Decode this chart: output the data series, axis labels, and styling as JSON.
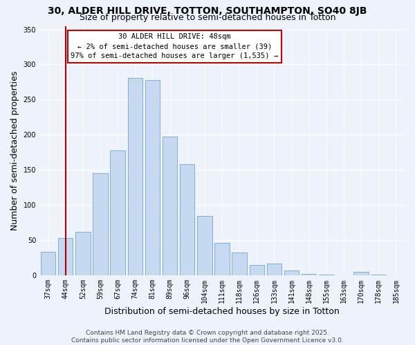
{
  "title": "30, ALDER HILL DRIVE, TOTTON, SOUTHAMPTON, SO40 8JB",
  "subtitle": "Size of property relative to semi-detached houses in Totton",
  "xlabel": "Distribution of semi-detached houses by size in Totton",
  "ylabel": "Number of semi-detached properties",
  "bar_labels": [
    "37sqm",
    "44sqm",
    "52sqm",
    "59sqm",
    "67sqm",
    "74sqm",
    "81sqm",
    "89sqm",
    "96sqm",
    "104sqm",
    "111sqm",
    "118sqm",
    "126sqm",
    "133sqm",
    "141sqm",
    "148sqm",
    "155sqm",
    "163sqm",
    "170sqm",
    "178sqm",
    "185sqm"
  ],
  "bar_values": [
    33,
    53,
    62,
    145,
    178,
    281,
    278,
    197,
    158,
    84,
    46,
    32,
    15,
    17,
    7,
    2,
    1,
    0,
    5,
    1,
    0
  ],
  "bar_color": "#c6d9f1",
  "bar_edge_color": "#7ab0df",
  "vline_x_index": 1,
  "vline_color": "#aa0000",
  "annotation_box_text": "30 ALDER HILL DRIVE: 48sqm\n← 2% of semi-detached houses are smaller (39)\n97% of semi-detached houses are larger (1,535) →",
  "annotation_box_color": "#ffffff",
  "annotation_box_edge_color": "#cc0000",
  "ylim": [
    0,
    355
  ],
  "yticks": [
    0,
    50,
    100,
    150,
    200,
    250,
    300,
    350
  ],
  "footer_line1": "Contains HM Land Registry data © Crown copyright and database right 2025.",
  "footer_line2": "Contains public sector information licensed under the Open Government Licence v3.0.",
  "bg_color": "#eef2fb",
  "grid_color": "#ffffff",
  "title_fontsize": 10,
  "subtitle_fontsize": 9,
  "axis_label_fontsize": 9,
  "tick_fontsize": 7,
  "footer_fontsize": 6.5,
  "bar_width": 0.85
}
